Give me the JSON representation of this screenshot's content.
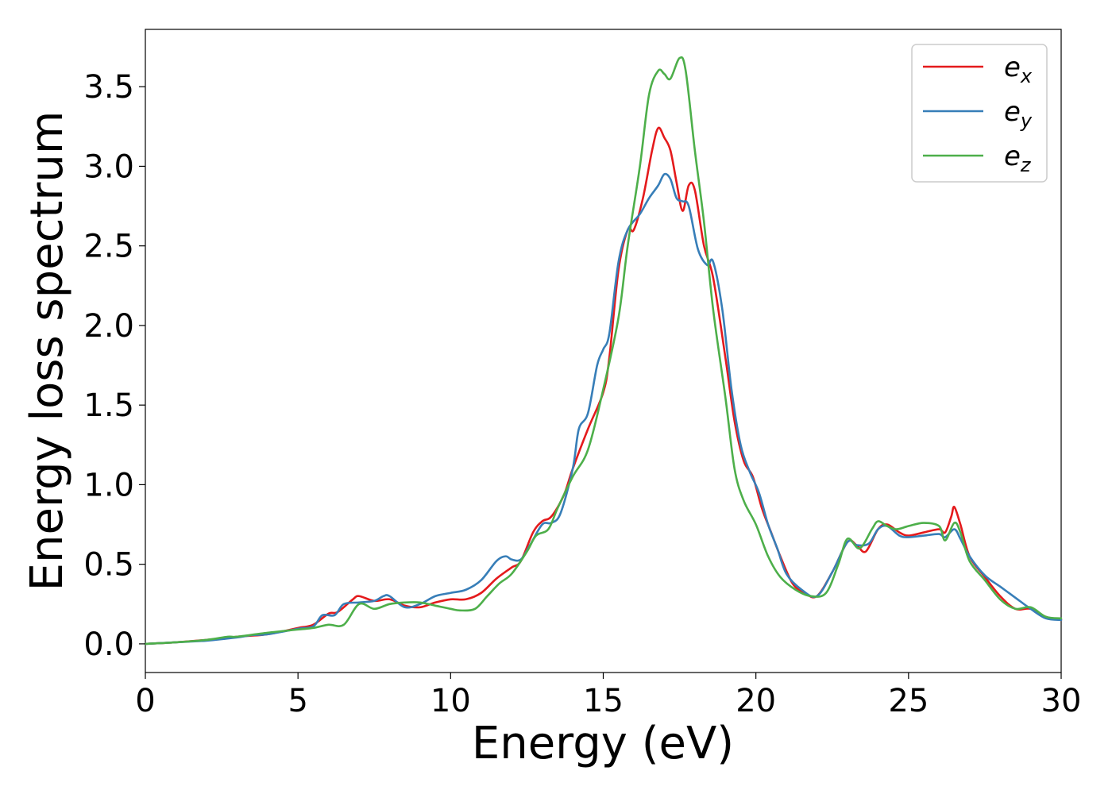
{
  "chart_data": {
    "type": "line",
    "title": "",
    "xlabel": "Energy (eV)",
    "ylabel": "Energy loss spectrum",
    "xlim": [
      0,
      30
    ],
    "ylim": [
      -0.18,
      3.86
    ],
    "xticks": [
      0,
      5,
      10,
      15,
      20,
      25,
      30
    ],
    "xtick_labels": [
      "0",
      "5",
      "10",
      "15",
      "20",
      "25",
      "30"
    ],
    "yticks": [
      0.0,
      0.5,
      1.0,
      1.5,
      2.0,
      2.5,
      3.0,
      3.5
    ],
    "ytick_labels": [
      "0.0",
      "0.5",
      "1.0",
      "1.5",
      "2.0",
      "2.5",
      "3.0",
      "3.5"
    ],
    "grid": false,
    "legend_position": "top-right",
    "series": [
      {
        "name": "e_x",
        "legend_base": "e",
        "legend_sub": "x",
        "color": "#e41a1c",
        "points": [
          [
            0,
            0
          ],
          [
            1,
            0.01
          ],
          [
            2,
            0.025
          ],
          [
            3,
            0.045
          ],
          [
            4,
            0.06
          ],
          [
            5,
            0.1
          ],
          [
            5.5,
            0.12
          ],
          [
            6,
            0.19
          ],
          [
            6.3,
            0.2
          ],
          [
            6.8,
            0.28
          ],
          [
            7,
            0.3
          ],
          [
            7.5,
            0.27
          ],
          [
            8,
            0.28
          ],
          [
            8.5,
            0.24
          ],
          [
            9,
            0.23
          ],
          [
            9.5,
            0.26
          ],
          [
            10,
            0.28
          ],
          [
            10.5,
            0.28
          ],
          [
            11,
            0.32
          ],
          [
            11.5,
            0.41
          ],
          [
            12,
            0.48
          ],
          [
            12.3,
            0.52
          ],
          [
            12.7,
            0.7
          ],
          [
            13,
            0.77
          ],
          [
            13.3,
            0.8
          ],
          [
            13.7,
            0.93
          ],
          [
            14,
            1.1
          ],
          [
            14.5,
            1.35
          ],
          [
            15,
            1.58
          ],
          [
            15.2,
            1.8
          ],
          [
            15.5,
            2.35
          ],
          [
            15.8,
            2.6
          ],
          [
            16,
            2.6
          ],
          [
            16.3,
            2.8
          ],
          [
            16.6,
            3.1
          ],
          [
            16.8,
            3.24
          ],
          [
            17,
            3.18
          ],
          [
            17.2,
            3.1
          ],
          [
            17.4,
            2.9
          ],
          [
            17.6,
            2.72
          ],
          [
            17.8,
            2.88
          ],
          [
            18,
            2.85
          ],
          [
            18.3,
            2.5
          ],
          [
            18.6,
            2.3
          ],
          [
            19,
            1.8
          ],
          [
            19.3,
            1.4
          ],
          [
            19.6,
            1.15
          ],
          [
            19.9,
            1.05
          ],
          [
            20.2,
            0.85
          ],
          [
            20.5,
            0.7
          ],
          [
            20.8,
            0.55
          ],
          [
            21.2,
            0.38
          ],
          [
            21.6,
            0.32
          ],
          [
            22,
            0.3
          ],
          [
            22.5,
            0.45
          ],
          [
            23,
            0.64
          ],
          [
            23.3,
            0.62
          ],
          [
            23.6,
            0.58
          ],
          [
            24,
            0.72
          ],
          [
            24.3,
            0.75
          ],
          [
            24.7,
            0.7
          ],
          [
            25,
            0.68
          ],
          [
            25.5,
            0.7
          ],
          [
            26,
            0.72
          ],
          [
            26.2,
            0.7
          ],
          [
            26.4,
            0.8
          ],
          [
            26.5,
            0.86
          ],
          [
            26.7,
            0.75
          ],
          [
            27,
            0.55
          ],
          [
            27.5,
            0.42
          ],
          [
            28,
            0.3
          ],
          [
            28.5,
            0.22
          ],
          [
            29,
            0.22
          ],
          [
            29.5,
            0.17
          ],
          [
            30,
            0.15
          ]
        ]
      },
      {
        "name": "e_y",
        "legend_base": "e",
        "legend_sub": "y",
        "color": "#377eb8",
        "points": [
          [
            0,
            0
          ],
          [
            1,
            0.01
          ],
          [
            2,
            0.02
          ],
          [
            3,
            0.04
          ],
          [
            3.5,
            0.055
          ],
          [
            4,
            0.06
          ],
          [
            5,
            0.095
          ],
          [
            5.5,
            0.11
          ],
          [
            5.8,
            0.18
          ],
          [
            6.2,
            0.18
          ],
          [
            6.5,
            0.25
          ],
          [
            7,
            0.26
          ],
          [
            7.5,
            0.27
          ],
          [
            7.8,
            0.3
          ],
          [
            8,
            0.3
          ],
          [
            8.5,
            0.23
          ],
          [
            9,
            0.25
          ],
          [
            9.5,
            0.3
          ],
          [
            10,
            0.32
          ],
          [
            10.5,
            0.34
          ],
          [
            11,
            0.4
          ],
          [
            11.5,
            0.52
          ],
          [
            11.8,
            0.55
          ],
          [
            12,
            0.53
          ],
          [
            12.3,
            0.53
          ],
          [
            12.6,
            0.62
          ],
          [
            13,
            0.75
          ],
          [
            13.3,
            0.76
          ],
          [
            13.6,
            0.82
          ],
          [
            14,
            1.1
          ],
          [
            14.2,
            1.35
          ],
          [
            14.5,
            1.45
          ],
          [
            14.8,
            1.75
          ],
          [
            15,
            1.85
          ],
          [
            15.2,
            1.95
          ],
          [
            15.5,
            2.4
          ],
          [
            15.8,
            2.6
          ],
          [
            16.2,
            2.7
          ],
          [
            16.5,
            2.8
          ],
          [
            16.8,
            2.88
          ],
          [
            17,
            2.95
          ],
          [
            17.2,
            2.92
          ],
          [
            17.4,
            2.8
          ],
          [
            17.6,
            2.78
          ],
          [
            17.8,
            2.75
          ],
          [
            18.1,
            2.48
          ],
          [
            18.4,
            2.38
          ],
          [
            18.6,
            2.4
          ],
          [
            18.9,
            2.1
          ],
          [
            19.2,
            1.6
          ],
          [
            19.5,
            1.25
          ],
          [
            19.8,
            1.08
          ],
          [
            20.1,
            0.95
          ],
          [
            20.4,
            0.75
          ],
          [
            20.7,
            0.6
          ],
          [
            21,
            0.44
          ],
          [
            21.5,
            0.34
          ],
          [
            22,
            0.3
          ],
          [
            22.5,
            0.45
          ],
          [
            23,
            0.64
          ],
          [
            23.3,
            0.62
          ],
          [
            23.7,
            0.63
          ],
          [
            24,
            0.72
          ],
          [
            24.3,
            0.74
          ],
          [
            24.7,
            0.68
          ],
          [
            25,
            0.67
          ],
          [
            25.5,
            0.68
          ],
          [
            26,
            0.69
          ],
          [
            26.2,
            0.67
          ],
          [
            26.5,
            0.72
          ],
          [
            26.7,
            0.66
          ],
          [
            27,
            0.55
          ],
          [
            27.5,
            0.43
          ],
          [
            28,
            0.36
          ],
          [
            28.5,
            0.29
          ],
          [
            29,
            0.22
          ],
          [
            29.5,
            0.16
          ],
          [
            30,
            0.15
          ]
        ]
      },
      {
        "name": "e_z",
        "legend_base": "e",
        "legend_sub": "z",
        "color": "#4daf4a",
        "points": [
          [
            0,
            0
          ],
          [
            1,
            0.01
          ],
          [
            2,
            0.025
          ],
          [
            2.7,
            0.045
          ],
          [
            3,
            0.045
          ],
          [
            4,
            0.07
          ],
          [
            5,
            0.09
          ],
          [
            5.5,
            0.1
          ],
          [
            6,
            0.12
          ],
          [
            6.5,
            0.12
          ],
          [
            7,
            0.25
          ],
          [
            7.5,
            0.22
          ],
          [
            8,
            0.25
          ],
          [
            8.5,
            0.26
          ],
          [
            9,
            0.26
          ],
          [
            9.5,
            0.24
          ],
          [
            10,
            0.22
          ],
          [
            10.3,
            0.21
          ],
          [
            10.8,
            0.22
          ],
          [
            11.2,
            0.3
          ],
          [
            11.6,
            0.38
          ],
          [
            12,
            0.44
          ],
          [
            12.5,
            0.58
          ],
          [
            12.8,
            0.68
          ],
          [
            13.2,
            0.72
          ],
          [
            13.5,
            0.85
          ],
          [
            14,
            1.05
          ],
          [
            14.5,
            1.22
          ],
          [
            15,
            1.6
          ],
          [
            15.5,
            2.05
          ],
          [
            15.8,
            2.5
          ],
          [
            16.2,
            3.0
          ],
          [
            16.5,
            3.45
          ],
          [
            16.8,
            3.6
          ],
          [
            17,
            3.58
          ],
          [
            17.2,
            3.55
          ],
          [
            17.5,
            3.68
          ],
          [
            17.7,
            3.6
          ],
          [
            18,
            3.1
          ],
          [
            18.3,
            2.65
          ],
          [
            18.6,
            2.1
          ],
          [
            19,
            1.55
          ],
          [
            19.3,
            1.1
          ],
          [
            19.6,
            0.9
          ],
          [
            20,
            0.75
          ],
          [
            20.4,
            0.55
          ],
          [
            20.8,
            0.42
          ],
          [
            21.3,
            0.34
          ],
          [
            21.8,
            0.3
          ],
          [
            22.3,
            0.32
          ],
          [
            22.7,
            0.5
          ],
          [
            23,
            0.66
          ],
          [
            23.4,
            0.6
          ],
          [
            23.8,
            0.72
          ],
          [
            24,
            0.77
          ],
          [
            24.3,
            0.74
          ],
          [
            24.6,
            0.72
          ],
          [
            25,
            0.74
          ],
          [
            25.5,
            0.76
          ],
          [
            26,
            0.74
          ],
          [
            26.2,
            0.65
          ],
          [
            26.5,
            0.76
          ],
          [
            26.7,
            0.7
          ],
          [
            27,
            0.52
          ],
          [
            27.5,
            0.4
          ],
          [
            28,
            0.28
          ],
          [
            28.5,
            0.22
          ],
          [
            29,
            0.23
          ],
          [
            29.5,
            0.17
          ],
          [
            30,
            0.16
          ]
        ]
      }
    ]
  }
}
